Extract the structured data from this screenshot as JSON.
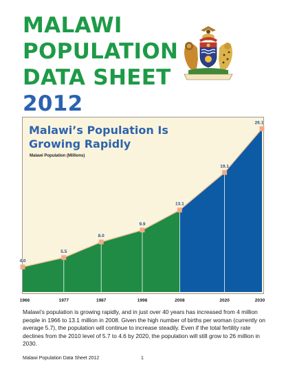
{
  "page": {
    "title_lines": [
      "MALAWI",
      "POPULATION",
      "DATA SHEET"
    ],
    "title_year": "2012",
    "caption": "Malawi’s population is growing rapidly, and in just over 40 years has increased from 4 million people in 1966 to 13.1 million in 2008. Given the high number of births per woman (currently on average 5.7), the population will continue to increase steadily.  Even if the total fertility rate declines from the 2010 level of 5.7 to 4.6 by 2020, the population will still grow to 26 million in 2030.",
    "footer": "Malawi Population Data Sheet 2012",
    "page_number": "1"
  },
  "chart_data": {
    "type": "area",
    "title": "Malawi’s Population Is Growing Rapidly",
    "title_lines": [
      "Malawi’s Population Is",
      "Growing Rapidly"
    ],
    "subtitle": "Malawi Population (Millions)",
    "x": [
      "1966",
      "1977",
      "1987",
      "1998",
      "2008",
      "2020",
      "2030"
    ],
    "values": [
      4.0,
      5.5,
      8.0,
      9.9,
      13.1,
      19.1,
      26.1
    ],
    "data_labels": [
      "4.0",
      "5.5",
      "8.0",
      "9.9",
      "13.1",
      "19.1",
      "26.1"
    ],
    "ylim": [
      0,
      28
    ],
    "segments": [
      {
        "from": "1966",
        "to": "2008",
        "color": "#1f8b45"
      },
      {
        "from": "2008",
        "to": "2030",
        "color": "#0d5ba5"
      }
    ],
    "colors": {
      "background": "#fbf4dc",
      "line": "#efc39e",
      "marker": "#f3ab86",
      "label": "#2a4f8e",
      "axis_label": "#1a1a1a"
    }
  }
}
